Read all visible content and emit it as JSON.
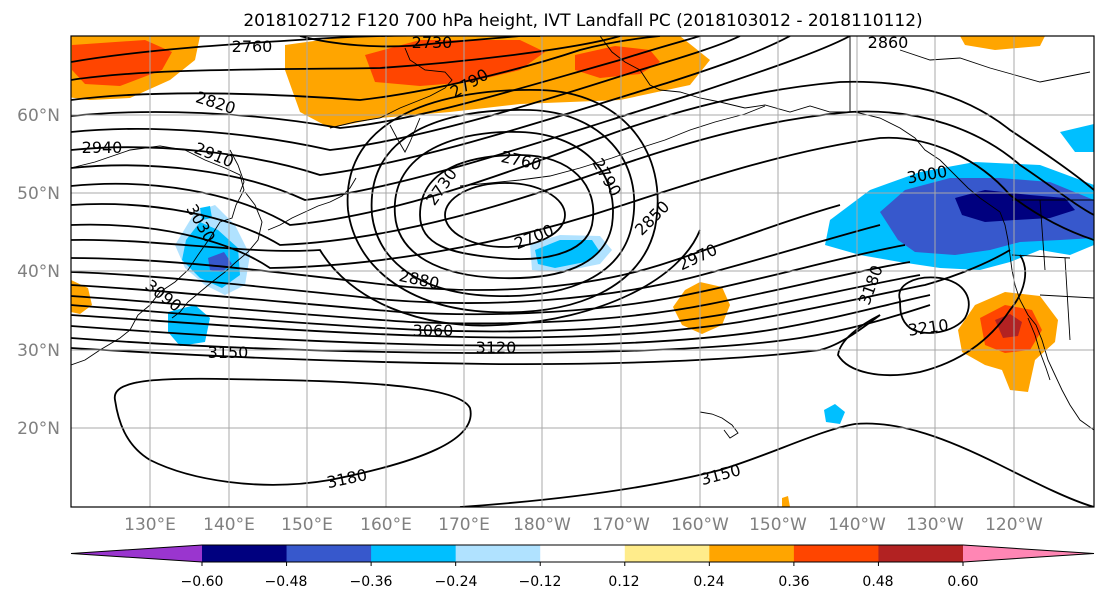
{
  "title": "2018102712 F120 700 hPa height, IVT Landfall PC (2018103012 - 2018110112)",
  "lat_labels": [
    "60°N",
    "50°N",
    "40°N",
    "30°N",
    "20°N"
  ],
  "lon_labels": [
    "130°E",
    "140°E",
    "150°E",
    "160°E",
    "170°E",
    "180°W",
    "170°W",
    "160°W",
    "150°W",
    "140°W",
    "130°W",
    "120°W"
  ],
  "contour_labels": [
    "2760",
    "2730",
    "2860",
    "2820",
    "2790",
    "2940",
    "2910",
    "3030",
    "2760",
    "2790",
    "2730",
    "2700",
    "2850",
    "2970",
    "3000",
    "2880",
    "3090",
    "3180",
    "3060",
    "3120",
    "3210",
    "3150",
    "3180",
    "3150"
  ],
  "colorbar": {
    "ticks": [
      "−0.60",
      "−0.48",
      "−0.36",
      "−0.24",
      "−0.12",
      "0.12",
      "0.24",
      "0.36",
      "0.48",
      "0.60"
    ],
    "colors": [
      "#9a35cf",
      "#00007f",
      "#3758cc",
      "#00bfff",
      "#b0e2ff",
      "#ffffff",
      "#ffec8b",
      "#ffa500",
      "#ff4500",
      "#b22222",
      "#ff86b4"
    ]
  }
}
